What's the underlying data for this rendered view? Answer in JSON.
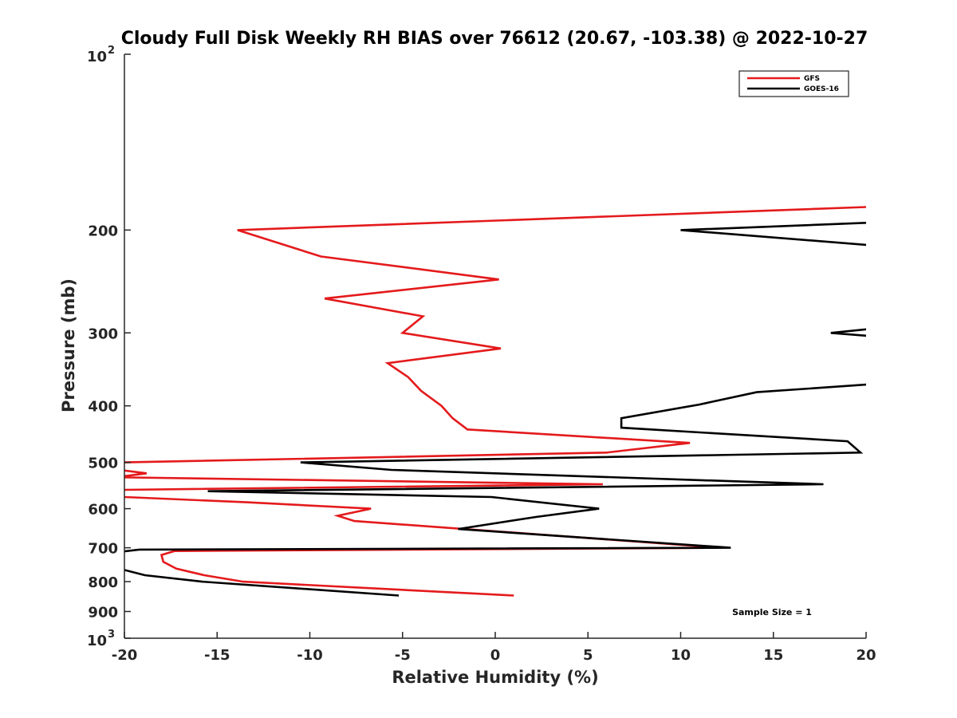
{
  "chart_data": {
    "type": "line",
    "title": "Cloudy Full Disk Weekly RH BIAS over 76612 (20.67, -103.38) @ 2022-10-27",
    "xlabel": "Relative Humidity (%)",
    "ylabel": "Pressure (mb)",
    "xlim": [
      -20,
      20
    ],
    "ylim": [
      100,
      1000
    ],
    "yscale": "log",
    "y_reversed": true,
    "xticks": [
      "-20",
      "-15",
      "-10",
      "-5",
      "0",
      "5",
      "10",
      "15",
      "20"
    ],
    "yticks": [
      {
        "value": 100,
        "base": "10",
        "exp": "2"
      },
      {
        "value": 200,
        "label": "200"
      },
      {
        "value": 300,
        "label": "300"
      },
      {
        "value": 400,
        "label": "400"
      },
      {
        "value": 500,
        "label": "500"
      },
      {
        "value": 600,
        "label": "600"
      },
      {
        "value": 700,
        "label": "700"
      },
      {
        "value": 800,
        "label": "800"
      },
      {
        "value": 900,
        "label": "900"
      },
      {
        "value": 1000,
        "base": "10",
        "exp": "3"
      }
    ],
    "legend_position": "top-right",
    "annotation": "Sample Size = 1",
    "series": [
      {
        "name": "GFS",
        "color": "#e41a1c",
        "points": [
          [
            21.3,
            182
          ],
          [
            -13.9,
            200
          ],
          [
            -9.4,
            222
          ],
          [
            0.2,
            243
          ],
          [
            -9.2,
            262
          ],
          [
            -3.9,
            281
          ],
          [
            -5.0,
            300
          ],
          [
            0.3,
            319
          ],
          [
            -5.8,
            338
          ],
          [
            -4.7,
            357
          ],
          [
            -4.0,
            377
          ],
          [
            -2.9,
            400
          ],
          [
            -2.3,
            420
          ],
          [
            -1.5,
            439
          ],
          [
            10.5,
            463
          ],
          [
            6.0,
            481
          ],
          [
            -20.0,
            500
          ],
          [
            -20.5,
            514
          ],
          [
            -18.8,
            522
          ],
          [
            -20.5,
            530
          ],
          [
            5.8,
            545
          ],
          [
            -20.0,
            557
          ],
          [
            -20.5,
            565
          ],
          [
            -20.0,
            573
          ],
          [
            -13.4,
            585
          ],
          [
            -6.7,
            600
          ],
          [
            -8.5,
            617
          ],
          [
            -7.6,
            630
          ],
          [
            12.2,
            700
          ],
          [
            -17.3,
            709
          ],
          [
            -18.0,
            720
          ],
          [
            -17.9,
            740
          ],
          [
            -17.2,
            760
          ],
          [
            -15.7,
            780
          ],
          [
            -13.6,
            800
          ],
          [
            1.0,
            845
          ]
        ]
      },
      {
        "name": "GOES-16",
        "color": "#000000",
        "points": [
          [
            20.7,
            194
          ],
          [
            10.0,
            200
          ],
          [
            20.8,
            213
          ],
          [
            null,
            240
          ],
          [
            20.4,
            295
          ],
          [
            18.1,
            300
          ],
          [
            20.4,
            304
          ],
          [
            null,
            330
          ],
          [
            20.5,
            367
          ],
          [
            14.1,
            379
          ],
          [
            11.0,
            398
          ],
          [
            6.8,
            420
          ],
          [
            6.8,
            436
          ],
          [
            19.0,
            460
          ],
          [
            19.7,
            481
          ],
          [
            -10.5,
            500
          ],
          [
            -5.6,
            515
          ],
          [
            17.7,
            545
          ],
          [
            -15.5,
            560
          ],
          [
            -0.2,
            573
          ],
          [
            5.6,
            600
          ],
          [
            2.2,
            620
          ],
          [
            -2.0,
            650
          ],
          [
            12.7,
            700
          ],
          [
            -19.2,
            705
          ],
          [
            -20.0,
            710
          ],
          [
            -21.0,
            750
          ],
          [
            -18.9,
            780
          ],
          [
            -15.8,
            800
          ],
          [
            -5.2,
            845
          ]
        ]
      }
    ]
  }
}
